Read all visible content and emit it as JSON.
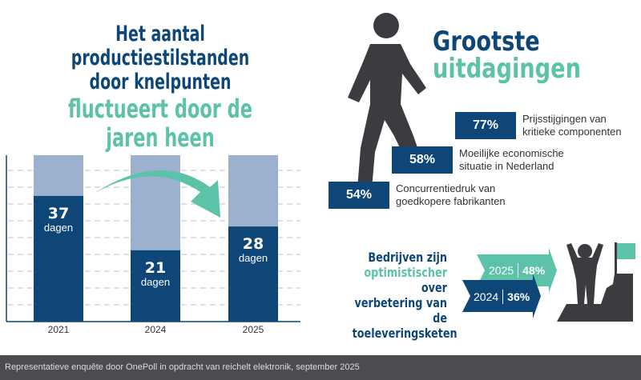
{
  "title": {
    "line1": "Het aantal productiestilstanden",
    "line2": "door knelpunten",
    "line3": "fluctueert door de",
    "line4": "jaren heen"
  },
  "chart_data": {
    "type": "bar",
    "title": "Het aantal productiestilstanden door knelpunten fluctueert door de jaren heen",
    "categories": [
      "2021",
      "2024",
      "2025"
    ],
    "values": [
      37,
      21,
      28
    ],
    "unit": "dagen",
    "ylim": [
      0,
      49
    ],
    "grid": true
  },
  "challenges": {
    "title1": "Grootste",
    "title2": "uitdagingen",
    "items": [
      {
        "pct": "77%",
        "label1": "Prijsstijgingen van",
        "label2": "kritieke componenten"
      },
      {
        "pct": "58%",
        "label1": "Moeilijke economische",
        "label2": "situatie in Nederland"
      },
      {
        "pct": "54%",
        "label1": "Concurrentiedruk van",
        "label2": "goedkopere fabrikanten"
      }
    ]
  },
  "optimism": {
    "line1": "Bedrijven zijn",
    "line2": "optimistischer",
    "line3": "over verbetering van",
    "line4": "de toeleveringsketen",
    "arrows": [
      {
        "year": "2025",
        "pct": "48%"
      },
      {
        "year": "2024",
        "pct": "36%"
      }
    ]
  },
  "colors": {
    "navy": "#0e4677",
    "teal": "#5cc3a8",
    "light": "#9cb0d0",
    "gray": "#3c3c40"
  },
  "footer": "Representatieve enquête door OnePoll in opdracht van reichelt elektronik, september 2025"
}
